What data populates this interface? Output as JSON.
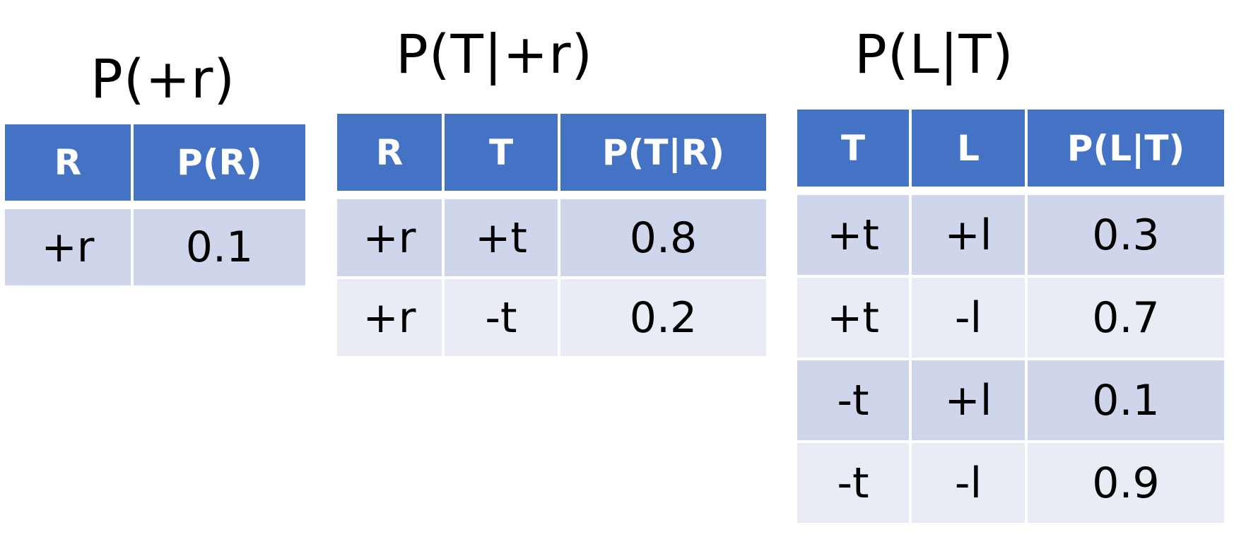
{
  "tables": [
    {
      "title": "P(+r)",
      "headers": [
        "R",
        "P(R)"
      ],
      "rows": [
        [
          "+r",
          "0.1"
        ]
      ]
    },
    {
      "title": "P(T|+r)",
      "headers": [
        "R",
        "T",
        "P(T|R)"
      ],
      "rows": [
        [
          "+r",
          "+t",
          "0.8"
        ],
        [
          "+r",
          "-t",
          "0.2"
        ]
      ]
    },
    {
      "title": "P(L|T)",
      "headers": [
        "T",
        "L",
        "P(L|T)"
      ],
      "rows": [
        [
          "+t",
          "+l",
          "0.3"
        ],
        [
          "+t",
          "-l",
          "0.7"
        ],
        [
          "-t",
          "+l",
          "0.1"
        ],
        [
          "-t",
          "-l",
          "0.9"
        ]
      ]
    }
  ],
  "colors": {
    "header_fill": "#4472c4",
    "row_fill_dark": "#cfd5ea",
    "row_fill_light": "#e9ebf5"
  }
}
